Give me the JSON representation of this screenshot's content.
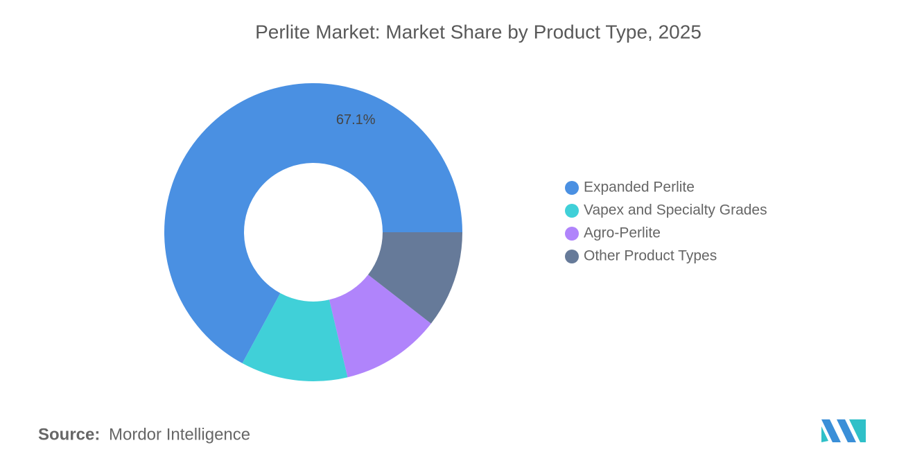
{
  "chart_data": {
    "type": "donut",
    "title": "Perlite Market: Market Share by Product Type, 2025",
    "categories": [
      "Expanded Perlite",
      "Vapex and Specialty Grades",
      "Agro-Perlite",
      "Other Product Types"
    ],
    "values": [
      67.1,
      11.6,
      10.8,
      10.5
    ],
    "value_labels": [
      "67.1%",
      null,
      null,
      null
    ],
    "colors": [
      "#4a90e2",
      "#40d0d8",
      "#b084fb",
      "#667a99"
    ],
    "legend": "right"
  },
  "source": {
    "label": "Source:",
    "text": "Mordor Intelligence"
  }
}
